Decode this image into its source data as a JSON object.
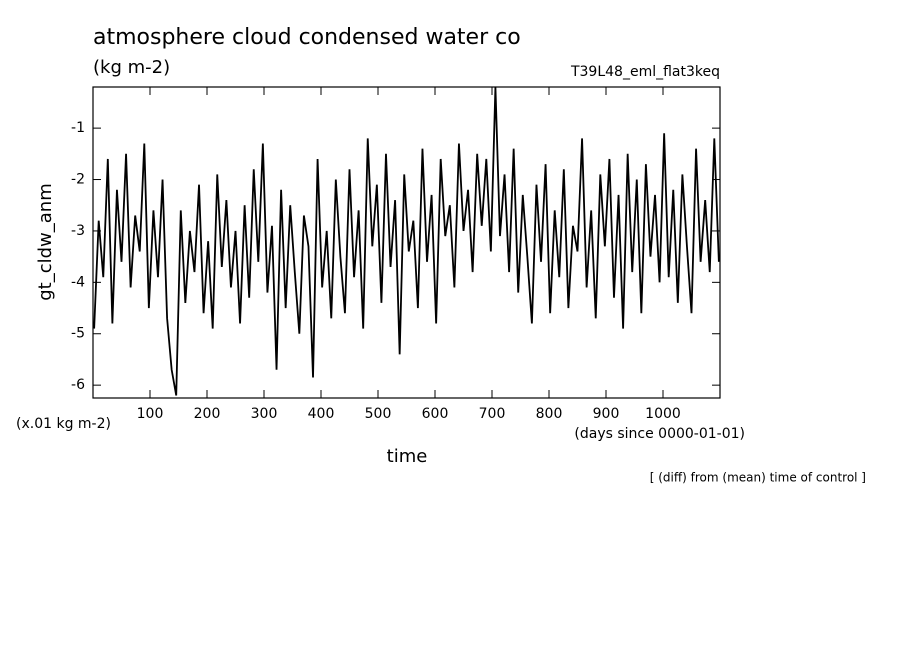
{
  "chart_data": {
    "type": "line",
    "title": "atmosphere cloud condensed water co",
    "subtitle": "(kg m-2)",
    "experiment": "T39L48_eml_flat3keq",
    "y_label": "gt_cldw_anm",
    "y_unit": "(x.01 kg m-2)",
    "x_label": "time",
    "x_unit": "(days since 0000-01-01)",
    "note": "[ (diff) from (mean) time of control ]",
    "xlim": [
      0,
      1100
    ],
    "ylim": [
      -6.25,
      -0.2
    ],
    "xticks": [
      100,
      200,
      300,
      400,
      500,
      600,
      700,
      800,
      900,
      1000
    ],
    "yticks": [
      -1,
      -2,
      -3,
      -4,
      -5,
      -6
    ],
    "color": "#000000",
    "x": [
      2,
      10,
      18,
      26,
      34,
      42,
      50,
      58,
      66,
      74,
      82,
      90,
      98,
      106,
      114,
      122,
      130,
      138,
      146,
      154,
      162,
      170,
      178,
      186,
      194,
      202,
      210,
      218,
      226,
      234,
      242,
      250,
      258,
      266,
      274,
      282,
      290,
      298,
      306,
      314,
      322,
      330,
      338,
      346,
      354,
      362,
      370,
      378,
      386,
      394,
      402,
      410,
      418,
      426,
      434,
      442,
      450,
      458,
      466,
      474,
      482,
      490,
      498,
      506,
      514,
      522,
      530,
      538,
      546,
      554,
      562,
      570,
      578,
      586,
      594,
      602,
      610,
      618,
      626,
      634,
      642,
      650,
      658,
      666,
      674,
      682,
      690,
      698,
      706,
      714,
      722,
      730,
      738,
      746,
      754,
      762,
      770,
      778,
      786,
      794,
      802,
      810,
      818,
      826,
      834,
      842,
      850,
      858,
      866,
      874,
      882,
      890,
      898,
      906,
      914,
      922,
      930,
      938,
      946,
      954,
      962,
      970,
      978,
      986,
      994,
      1002,
      1010,
      1018,
      1026,
      1034,
      1042,
      1050,
      1058,
      1066,
      1074,
      1082,
      1090,
      1098
    ],
    "values": [
      -4.9,
      -2.8,
      -3.9,
      -1.6,
      -4.8,
      -2.2,
      -3.6,
      -1.5,
      -4.1,
      -2.7,
      -3.4,
      -1.3,
      -4.5,
      -2.6,
      -3.9,
      -2.0,
      -4.7,
      -5.7,
      -6.2,
      -2.6,
      -4.4,
      -3.0,
      -3.8,
      -2.1,
      -4.6,
      -3.2,
      -4.9,
      -1.9,
      -3.7,
      -2.4,
      -4.1,
      -3.0,
      -4.8,
      -2.5,
      -4.3,
      -1.8,
      -3.6,
      -1.3,
      -4.2,
      -2.9,
      -5.7,
      -2.2,
      -4.5,
      -2.5,
      -3.8,
      -5.0,
      -2.7,
      -3.3,
      -5.85,
      -1.6,
      -4.1,
      -3.0,
      -4.7,
      -2.0,
      -3.5,
      -4.6,
      -1.8,
      -3.9,
      -2.6,
      -4.9,
      -1.2,
      -3.3,
      -2.1,
      -4.4,
      -1.5,
      -3.7,
      -2.4,
      -5.4,
      -1.9,
      -3.4,
      -2.8,
      -4.5,
      -1.4,
      -3.6,
      -2.3,
      -4.8,
      -1.6,
      -3.1,
      -2.5,
      -4.1,
      -1.3,
      -3.0,
      -2.2,
      -3.8,
      -1.5,
      -2.9,
      -1.6,
      -3.4,
      -0.2,
      -3.1,
      -1.9,
      -3.8,
      -1.4,
      -4.2,
      -2.3,
      -3.5,
      -4.8,
      -2.1,
      -3.6,
      -1.7,
      -4.6,
      -2.6,
      -3.9,
      -1.8,
      -4.5,
      -2.9,
      -3.4,
      -1.2,
      -4.1,
      -2.6,
      -4.7,
      -1.9,
      -3.3,
      -1.6,
      -4.3,
      -2.3,
      -4.9,
      -1.5,
      -3.8,
      -2.0,
      -4.6,
      -1.7,
      -3.5,
      -2.3,
      -4.0,
      -1.1,
      -3.9,
      -2.2,
      -4.4,
      -1.9,
      -3.3,
      -4.6,
      -1.4,
      -3.6,
      -2.4,
      -3.8,
      -1.2,
      -3.6
    ]
  }
}
